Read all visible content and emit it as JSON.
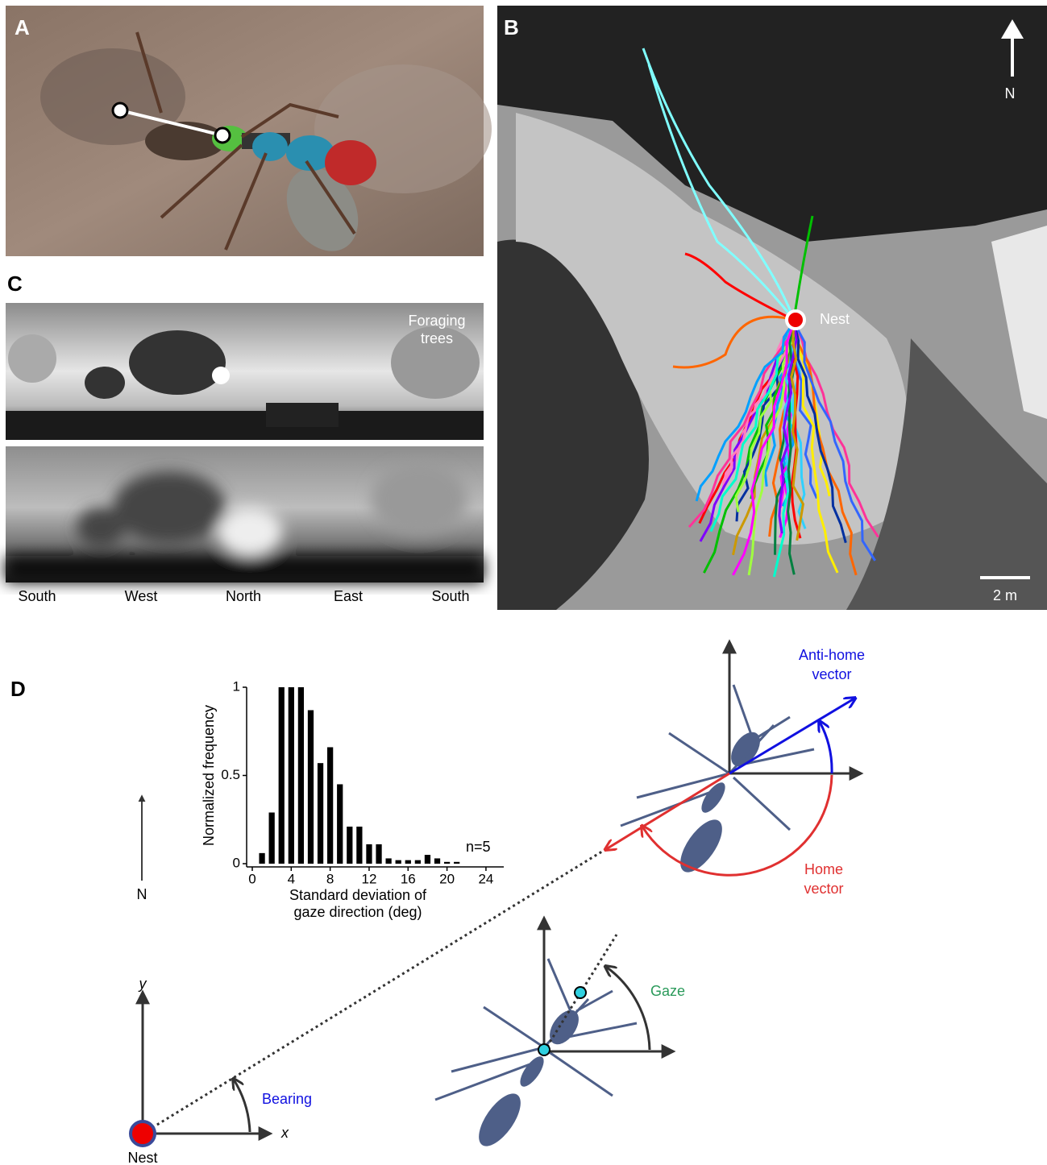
{
  "panels": {
    "a": "A",
    "b": "B",
    "c": "C",
    "d": "D"
  },
  "panel_b": {
    "north": "N",
    "nest": "Nest",
    "scale": "2 m"
  },
  "panel_c": {
    "trees": [
      "Foraging",
      "trees"
    ],
    "directions": [
      "South",
      "West",
      "North",
      "East",
      "South"
    ]
  },
  "panel_d": {
    "north": "N",
    "nest": "Nest",
    "bearing": "Bearing",
    "gaze": "Gaze",
    "anti_home": [
      "Anti-home",
      "vector"
    ],
    "home": [
      "Home",
      "vector"
    ],
    "x_axis": "x",
    "y_axis": "y"
  },
  "chart_data": {
    "type": "histogram",
    "ylabel": "Normalized frequency",
    "xlabel": [
      "Standard deviation of",
      "gaze direction (deg)"
    ],
    "annotation": "n=5",
    "bins": [
      0.5,
      1.5,
      2.5,
      3.5,
      4.5,
      5.5,
      6.5,
      7.5,
      8.5,
      9.5,
      10.5,
      11.5,
      12.5,
      13.5,
      14.5,
      15.5,
      16.5,
      17.5,
      18.5,
      19.5,
      20.5,
      21.5
    ],
    "values": [
      0.06,
      0.29,
      1,
      1,
      1,
      0.87,
      0.57,
      0.66,
      0.45,
      0.21,
      0.21,
      0.11,
      0.11,
      0.03,
      0.02,
      0.02,
      0.02,
      0.05,
      0.03,
      0.01,
      0.01
    ],
    "color": "#000000",
    "xlim": [
      0,
      25
    ],
    "ylim": [
      0,
      1
    ],
    "xticks": [
      0,
      4,
      8,
      12,
      16,
      20,
      24
    ],
    "yticks": [
      0,
      0.5,
      1
    ]
  }
}
